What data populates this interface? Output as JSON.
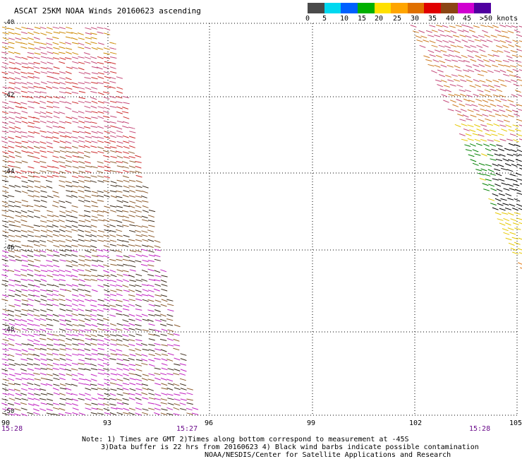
{
  "title": "ASCAT 25KM NOAA Winds 20160623 ascending",
  "legend": {
    "colors": [
      "#4a4a4a",
      "#00d8f0",
      "#0060ff",
      "#00b000",
      "#ffe000",
      "#ffa500",
      "#e07000",
      "#e00000",
      "#8b4513",
      "#d000d0",
      "#5000a0"
    ],
    "labels": [
      "0",
      "5",
      "10",
      "15",
      "20",
      "25",
      "30",
      "35",
      "40",
      "45",
      ">50 knots"
    ]
  },
  "axes": {
    "lat_labels": [
      "-40",
      "-42",
      "-44",
      "-46",
      "-48",
      "-50"
    ],
    "lon_labels": [
      "90",
      "93",
      "96",
      "99",
      "102",
      "105"
    ]
  },
  "times": [
    "15:28",
    "15:27",
    "15:28"
  ],
  "notes": {
    "line1": "Note: 1) Times are GMT 2)Times along bottom correspond to measurement at -45S",
    "line2": "3)Data buffer is 22 hrs from 20160623 4) Black wind barbs indicate possible contamination",
    "line3": "NOAA/NESDIS/Center for Satellite Applications and Research"
  },
  "barb_colors": {
    "left_swath": [
      "#cc8800",
      "#c44a7a",
      "#cc2a2a",
      "#8b5a2b",
      "#3a2a1a",
      "#c020c0"
    ],
    "right_swath": [
      "#cc7a22",
      "#c44a7a",
      "#e6c800",
      "#008000",
      "#000000",
      "#e07000"
    ]
  }
}
